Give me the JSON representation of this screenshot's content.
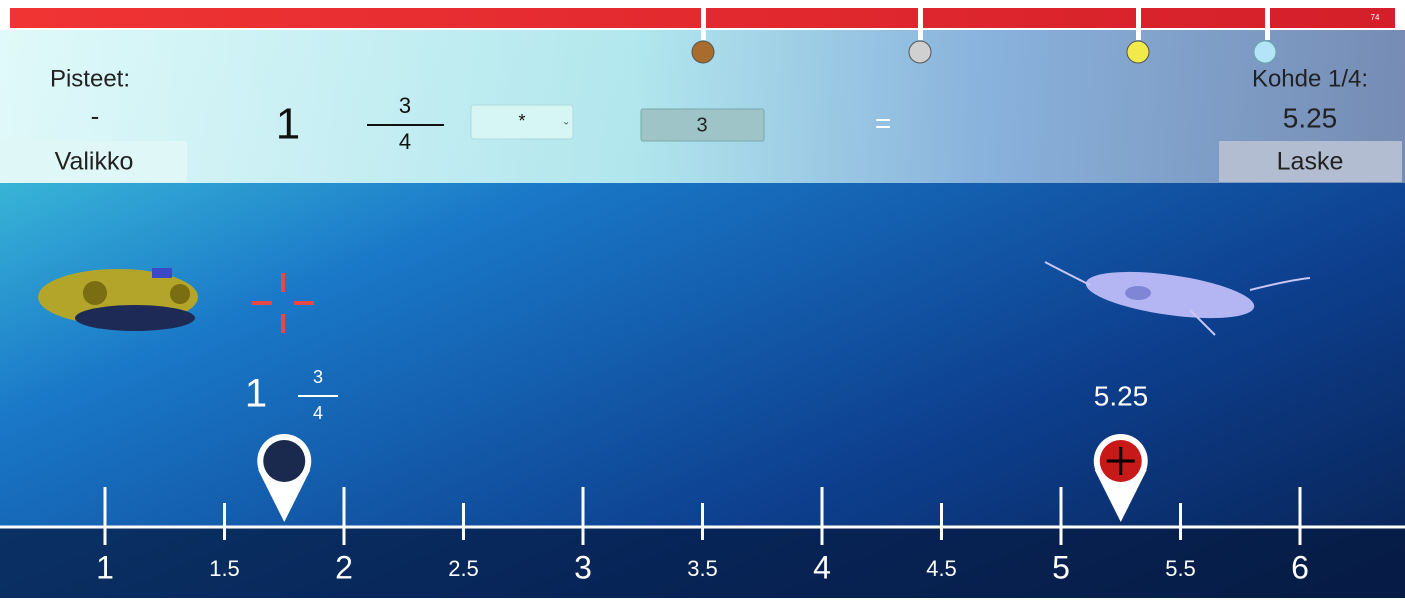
{
  "progress": {
    "label": "74"
  },
  "header": {
    "score_label": "Pisteet:",
    "score": "-",
    "menu_button": "Valikko",
    "target_label": "Kohde 1/4:",
    "target": "5.25",
    "calculate_button": "Laske"
  },
  "equation": {
    "whole": "1",
    "numerator": "3",
    "denominator": "4",
    "operator": "*",
    "operand": "3",
    "equals": "="
  },
  "scene": {
    "player_label": {
      "whole": "1",
      "numerator": "3",
      "denominator": "4"
    },
    "target_label": "5.25"
  },
  "number_line": {
    "ticks": [
      1,
      1.5,
      2,
      2.5,
      3,
      3.5,
      4,
      4.5,
      5,
      5.5,
      6
    ],
    "player_position": 1.75,
    "target_position": 5.25
  }
}
